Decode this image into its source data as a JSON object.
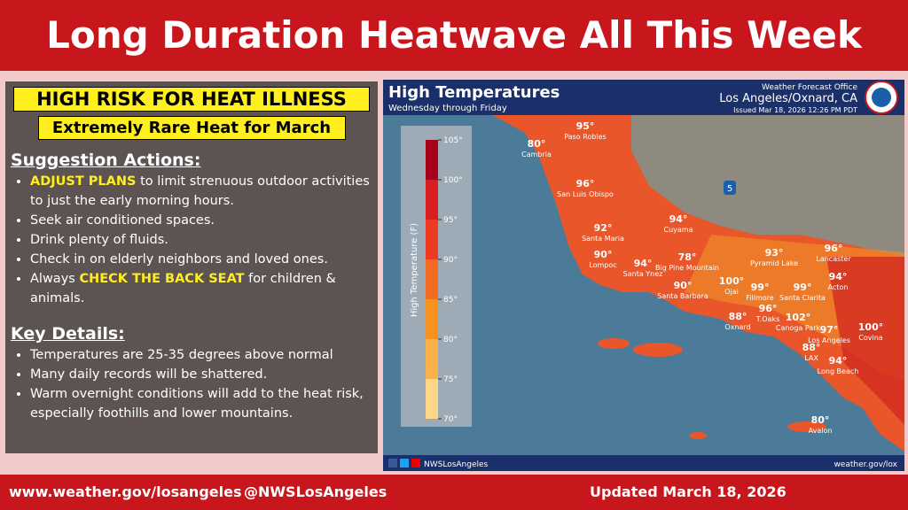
{
  "header": {
    "title": "Long Duration Heatwave All This Week"
  },
  "risk": {
    "headline": "HIGH RISK FOR HEAT ILLNESS",
    "subheadline": "Extremely Rare Heat for March"
  },
  "suggestions": {
    "heading": "Suggestion Actions:",
    "items": [
      [
        {
          "hl": "ADJUST PLANS"
        },
        {
          "t": " to limit strenuous outdoor activities to just the early morning hours."
        }
      ],
      [
        {
          "t": "Seek air conditioned spaces."
        }
      ],
      [
        {
          "t": "Drink plenty of fluids."
        }
      ],
      [
        {
          "t": "Check in on elderly neighbors and loved ones."
        }
      ],
      [
        {
          "t": "Always "
        },
        {
          "hl": "CHECK THE BACK SEAT"
        },
        {
          "t": " for children & animals."
        }
      ]
    ]
  },
  "details": {
    "heading": "Key Details:",
    "items": [
      "Temperatures are 25-35 degrees above normal",
      "Many daily records will be shattered.",
      "Warm overnight conditions will add to the heat risk, especially foothills and lower mountains."
    ]
  },
  "map": {
    "title": "High Temperatures",
    "subtitle": "Wednesday through Friday",
    "office": "Weather Forecast Office",
    "location": "Los Angeles/Oxnard, CA",
    "issued": "Issued Mar 18, 2026 12:26 PM PDT",
    "highway": "5",
    "social": "NWSLosAngeles",
    "url": "weather.gov/lox",
    "legend": {
      "title": "High Temperature (F)",
      "ticks": [
        "105°",
        "100°",
        "95°",
        "90°",
        "85°",
        "80°",
        "75°",
        "70°"
      ],
      "colors": [
        "#a8001a",
        "#d81e1e",
        "#ee3a20",
        "#f26b22",
        "#f7921f",
        "#f9b24a",
        "#fcd78a"
      ]
    },
    "cities": [
      {
        "temp": "95°",
        "name": "Paso Robles"
      },
      {
        "temp": "80°",
        "name": "Cambria"
      },
      {
        "temp": "96°",
        "name": "San Luis Obispo"
      },
      {
        "temp": "92°",
        "name": "Santa Maria"
      },
      {
        "temp": "90°",
        "name": "Lompoc"
      },
      {
        "temp": "94°",
        "name": "Cuyama"
      },
      {
        "temp": "94°",
        "name": "Santa Ynez"
      },
      {
        "temp": "78°",
        "name": "Big Pine Mountain"
      },
      {
        "temp": "90°",
        "name": "Santa Barbara"
      },
      {
        "temp": "100°",
        "name": "Ojai"
      },
      {
        "temp": "88°",
        "name": "Oxnard"
      },
      {
        "temp": "99°",
        "name": "Fillmore"
      },
      {
        "temp": "96°",
        "name": "T.Oaks"
      },
      {
        "temp": "93°",
        "name": "Pyramid Lake"
      },
      {
        "temp": "99°",
        "name": "Santa Clarita"
      },
      {
        "temp": "102°",
        "name": "Canoga Park"
      },
      {
        "temp": "96°",
        "name": "Lancaster"
      },
      {
        "temp": "94°",
        "name": "Acton"
      },
      {
        "temp": "97°",
        "name": "Los Angeles"
      },
      {
        "temp": "88°",
        "name": "LAX"
      },
      {
        "temp": "94°",
        "name": "Long Beach"
      },
      {
        "temp": "100°",
        "name": "Covina"
      },
      {
        "temp": "80°",
        "name": "Avalon"
      }
    ]
  },
  "footer": {
    "website": "www.weather.gov/losangeles",
    "handle": "@NWSLosAngeles",
    "updated": "Updated March 18, 2026"
  }
}
